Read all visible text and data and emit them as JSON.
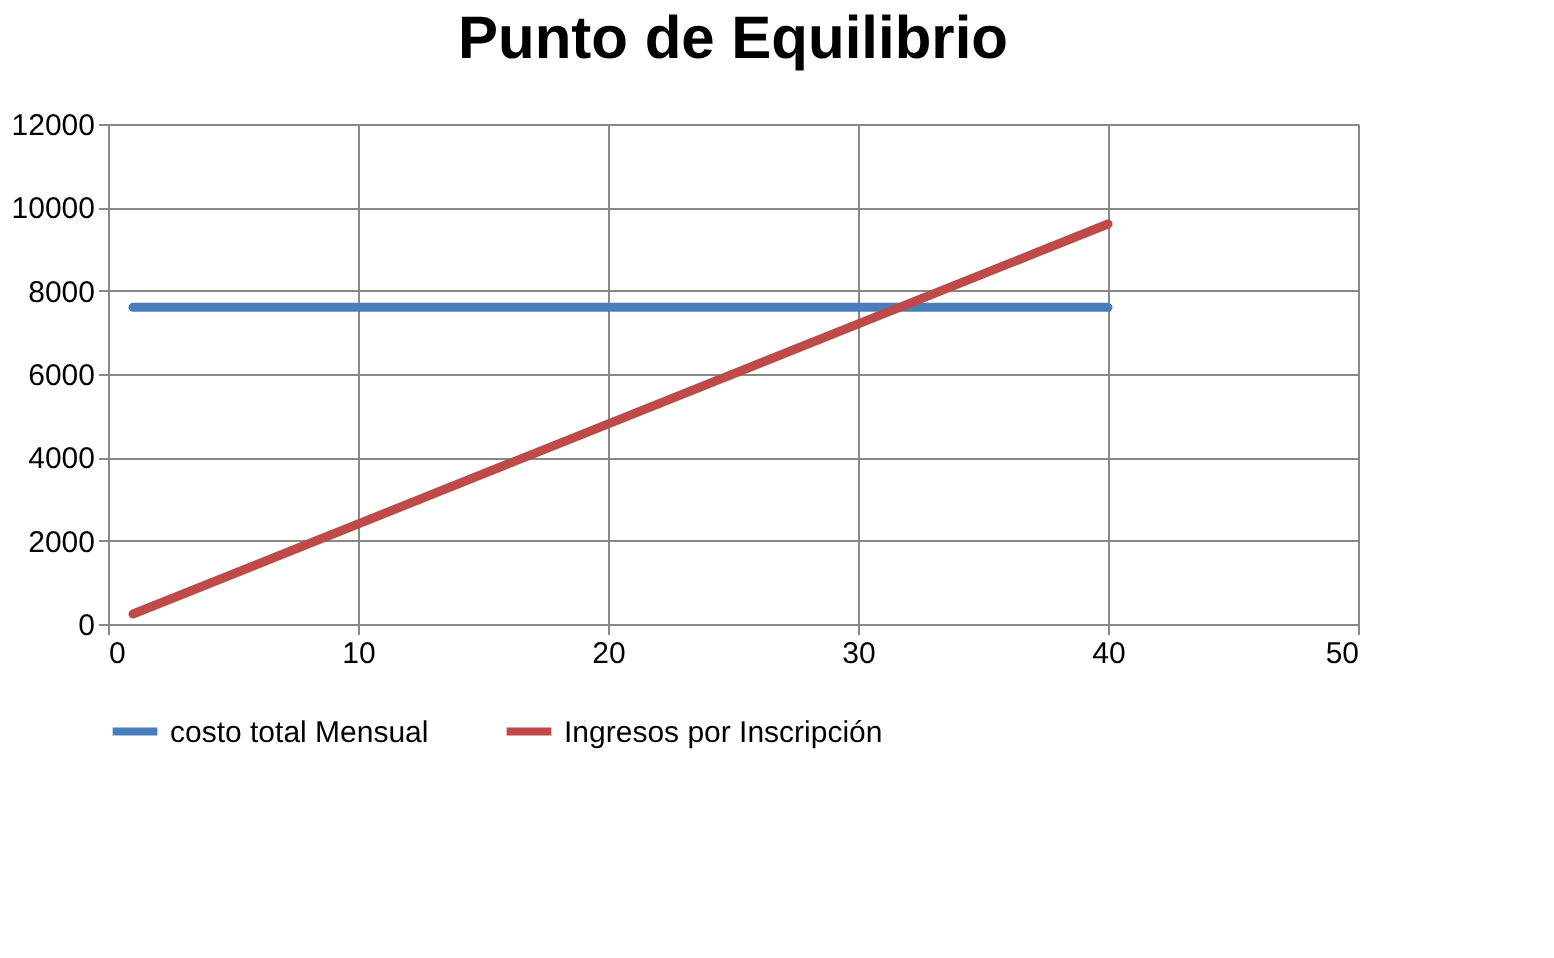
{
  "chart_data": {
    "type": "line",
    "title": "Punto de Equilibrio",
    "x": [
      1,
      40
    ],
    "series": [
      {
        "name": "costo total Mensual",
        "color": "#4a7ebb",
        "values": [
          7600,
          7600
        ]
      },
      {
        "name": "Ingresos por Inscripción",
        "color": "#be4b48",
        "values": [
          240,
          9600
        ]
      }
    ],
    "xlim": [
      0,
      50
    ],
    "xticks": [
      0,
      10,
      20,
      30,
      40,
      50
    ],
    "ylim": [
      0,
      12000
    ],
    "yticks": [
      0,
      2000,
      4000,
      6000,
      8000,
      10000,
      12000
    ],
    "grid": true,
    "legend": "bottom",
    "marker": "none",
    "line_style": "solid"
  }
}
